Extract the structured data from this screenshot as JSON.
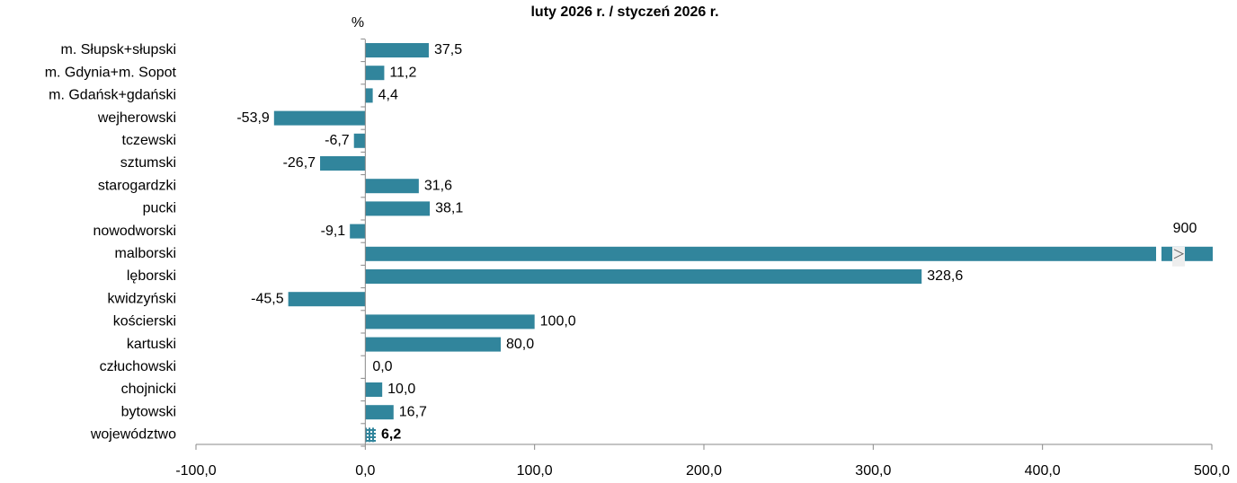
{
  "chart_data": {
    "type": "bar",
    "orientation": "horizontal",
    "title": "luty 2026 r. / styczeń 2026 r.",
    "axis_label": "%",
    "categories": [
      "m. Słupsk+słupski",
      "m. Gdynia+m. Sopot",
      "m. Gdańsk+gdański",
      "wejherowski",
      "tczewski",
      "sztumski",
      "starogardzki",
      "pucki",
      "nowodworski",
      "malborski",
      "lęborski",
      "kwidzyński",
      "kościerski",
      "kartuski",
      "człuchowski",
      "chojnicki",
      "bytowski",
      "województwo"
    ],
    "values": [
      37.5,
      11.2,
      4.4,
      -53.9,
      -6.7,
      -26.7,
      31.6,
      38.1,
      -9.1,
      900,
      328.6,
      -45.5,
      100.0,
      80.0,
      0.0,
      10.0,
      16.7,
      6.2
    ],
    "value_labels": [
      "37,5",
      "11,2",
      "4,4",
      "-53,9",
      "-6,7",
      "-26,7",
      "31,6",
      "38,1",
      "-9,1",
      "900",
      "328,6",
      "-45,5",
      "100,0",
      "80,0",
      "0,0",
      "10,0",
      "16,7",
      "6,2"
    ],
    "color": "#31859c",
    "xlim": [
      -100,
      500
    ],
    "xticks": [
      {
        "value": -100,
        "label": "-100,0"
      },
      {
        "value": 0,
        "label": "0,0"
      },
      {
        "value": 100,
        "label": "100,0"
      },
      {
        "value": 200,
        "label": "200,0"
      },
      {
        "value": 300,
        "label": "300,0"
      },
      {
        "value": 400,
        "label": "400,0"
      },
      {
        "value": 500,
        "label": "500,0"
      }
    ],
    "grid": false
  }
}
